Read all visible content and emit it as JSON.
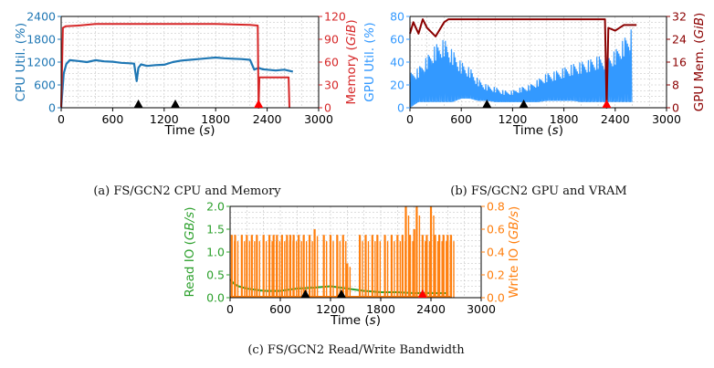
{
  "captions": {
    "a": "(a) FS/GCN2 CPU and Memory",
    "b": "(b) FS/GCN2 GPU and VRAM",
    "c": "(c) FS/GCN2 Read/Write Bandwidth"
  },
  "colors": {
    "cpu": "#1f77b4",
    "mem": "#d62728",
    "gpu": "#3399ff",
    "vram": "#8b0000",
    "read": "#2ca02c",
    "write": "#ff7f0e",
    "marker_black": "#000000",
    "marker_red": "#ff0000"
  },
  "chart_data": [
    {
      "type": "line",
      "xlabel": "Time (s)",
      "xlim": [
        0,
        3000
      ],
      "xticks": [
        "0",
        "600",
        "1200",
        "1800",
        "2400",
        "3000"
      ],
      "ylabel_left": "CPU Util. (%)",
      "ylim_left": [
        0,
        2400
      ],
      "yticks_left": [
        "0",
        "600",
        "1200",
        "1800",
        "2400"
      ],
      "ylabel_right": "Memory (GiB)",
      "ylim_right": [
        0,
        120
      ],
      "yticks_right": [
        "0",
        "30",
        "60",
        "90",
        "120"
      ],
      "grid": true,
      "markers": [
        {
          "x": 900,
          "color": "black"
        },
        {
          "x": 1330,
          "color": "black"
        },
        {
          "x": 2300,
          "color": "red"
        }
      ],
      "series": [
        {
          "axis": "left",
          "color": "cpu",
          "x": [
            0,
            30,
            60,
            100,
            200,
            300,
            400,
            500,
            600,
            700,
            800,
            850,
            880,
            900,
            930,
            1000,
            1100,
            1200,
            1300,
            1400,
            1500,
            1600,
            1700,
            1800,
            1900,
            2000,
            2100,
            2200,
            2250,
            2300,
            2350,
            2400,
            2500,
            2600,
            2700
          ],
          "y": [
            0,
            900,
            1150,
            1250,
            1230,
            1200,
            1250,
            1220,
            1210,
            1180,
            1170,
            1160,
            700,
            1050,
            1140,
            1100,
            1120,
            1130,
            1200,
            1240,
            1260,
            1280,
            1300,
            1320,
            1300,
            1290,
            1280,
            1260,
            1000,
            1050,
            1010,
            1000,
            980,
            1000,
            950
          ]
        },
        {
          "axis": "right",
          "color": "mem",
          "x": [
            0,
            20,
            50,
            200,
            400,
            600,
            1000,
            1400,
            1800,
            2200,
            2290,
            2300,
            2310,
            2600,
            2650,
            2660
          ],
          "y": [
            0,
            105,
            107,
            108,
            110,
            110,
            110,
            110,
            110,
            109,
            108,
            0,
            40,
            40,
            40,
            0
          ]
        }
      ]
    },
    {
      "type": "line",
      "xlabel": "Time (s)",
      "xlim": [
        0,
        3000
      ],
      "xticks": [
        "0",
        "600",
        "1200",
        "1800",
        "2400",
        "3000"
      ],
      "ylabel_left": "GPU Util. (%)",
      "ylim_left": [
        0,
        80
      ],
      "yticks_left": [
        "0",
        "20",
        "40",
        "60",
        "80"
      ],
      "ylabel_right": "GPU Mem. (GiB)",
      "ylim_right": [
        0,
        32
      ],
      "yticks_right": [
        "0",
        "8",
        "16",
        "24",
        "32"
      ],
      "grid": true,
      "markers": [
        {
          "x": 900,
          "color": "black"
        },
        {
          "x": 1330,
          "color": "black"
        },
        {
          "x": 2300,
          "color": "red"
        }
      ],
      "series": [
        {
          "axis": "left",
          "color": "gpu",
          "style": "oscillating",
          "x": [
            0,
            100,
            200,
            300,
            400,
            500,
            600,
            700,
            800,
            900,
            1000,
            1100,
            1200,
            1300,
            1400,
            1500,
            1600,
            1700,
            1800,
            1900,
            2000,
            2100,
            2200,
            2300,
            2400,
            2500,
            2600
          ],
          "y": [
            30,
            35,
            45,
            55,
            60,
            50,
            40,
            35,
            25,
            20,
            18,
            15,
            15,
            18,
            20,
            25,
            30,
            32,
            35,
            38,
            40,
            42,
            45,
            45,
            50,
            60,
            70
          ],
          "y_low": [
            0,
            5,
            5,
            5,
            5,
            5,
            8,
            8,
            6,
            6,
            5,
            5,
            5,
            5,
            5,
            5,
            6,
            6,
            6,
            6,
            5,
            5,
            5,
            5,
            5,
            5,
            5
          ]
        },
        {
          "axis": "right",
          "color": "vram",
          "x": [
            0,
            40,
            100,
            150,
            200,
            300,
            400,
            450,
            500,
            800,
            1200,
            1600,
            2000,
            2280,
            2300,
            2320,
            2400,
            2500,
            2550,
            2600,
            2650
          ],
          "y": [
            26,
            30,
            26,
            31,
            28,
            25,
            30,
            31,
            31,
            31,
            31,
            31,
            31,
            31,
            0,
            28,
            27,
            29,
            29,
            29,
            29
          ]
        }
      ]
    },
    {
      "type": "line",
      "xlabel": "Time (s)",
      "xlim": [
        0,
        3000
      ],
      "xticks": [
        "0",
        "600",
        "1200",
        "1800",
        "2400",
        "3000"
      ],
      "ylabel_left": "Read IO (GB/s)",
      "ylim_left": [
        0,
        2.0
      ],
      "yticks_left": [
        "0.0",
        "0.5",
        "1.0",
        "1.5",
        "2.0"
      ],
      "ylabel_right": "Write IO (GB/s)",
      "ylim_right": [
        0,
        0.8
      ],
      "yticks_right": [
        "0.0",
        "0.2",
        "0.4",
        "0.6",
        "0.8"
      ],
      "grid": true,
      "markers": [
        {
          "x": 900,
          "color": "black"
        },
        {
          "x": 1330,
          "color": "black"
        },
        {
          "x": 2300,
          "color": "red"
        }
      ],
      "series": [
        {
          "axis": "left",
          "color": "read",
          "x": [
            0,
            50,
            100,
            200,
            400,
            600,
            800,
            1000,
            1200,
            1400,
            1600,
            1800,
            2000,
            2200,
            2400,
            2600
          ],
          "y": [
            0.4,
            0.3,
            0.25,
            0.2,
            0.15,
            0.15,
            0.2,
            0.22,
            0.25,
            0.2,
            0.15,
            0.12,
            0.12,
            0.1,
            0.1,
            0.1
          ]
        },
        {
          "axis": "right",
          "color": "write",
          "style": "spikes",
          "x": [
            20,
            60,
            140,
            200,
            260,
            320,
            400,
            470,
            520,
            560,
            620,
            680,
            720,
            760,
            820,
            880,
            950,
            1010,
            1120,
            1200,
            1280,
            1350,
            1400,
            1550,
            1620,
            1700,
            1760,
            1850,
            1930,
            2000,
            2060,
            2100,
            2150,
            2200,
            2230,
            2300,
            2350,
            2400,
            2450,
            2500,
            2550,
            2600,
            2640
          ],
          "y": [
            0.55,
            0.55,
            0.55,
            0.55,
            0.55,
            0.55,
            0.55,
            0.55,
            0.55,
            0.55,
            0.55,
            0.55,
            0.55,
            0.55,
            0.55,
            0.55,
            0.55,
            0.6,
            0.55,
            0.55,
            0.55,
            0.55,
            0.3,
            0.55,
            0.55,
            0.55,
            0.55,
            0.55,
            0.55,
            0.55,
            0.55,
            0.8,
            0.55,
            0.6,
            0.8,
            0.55,
            0.55,
            0.8,
            0.55,
            0.55,
            0.55,
            0.55,
            0.55
          ]
        }
      ]
    }
  ]
}
